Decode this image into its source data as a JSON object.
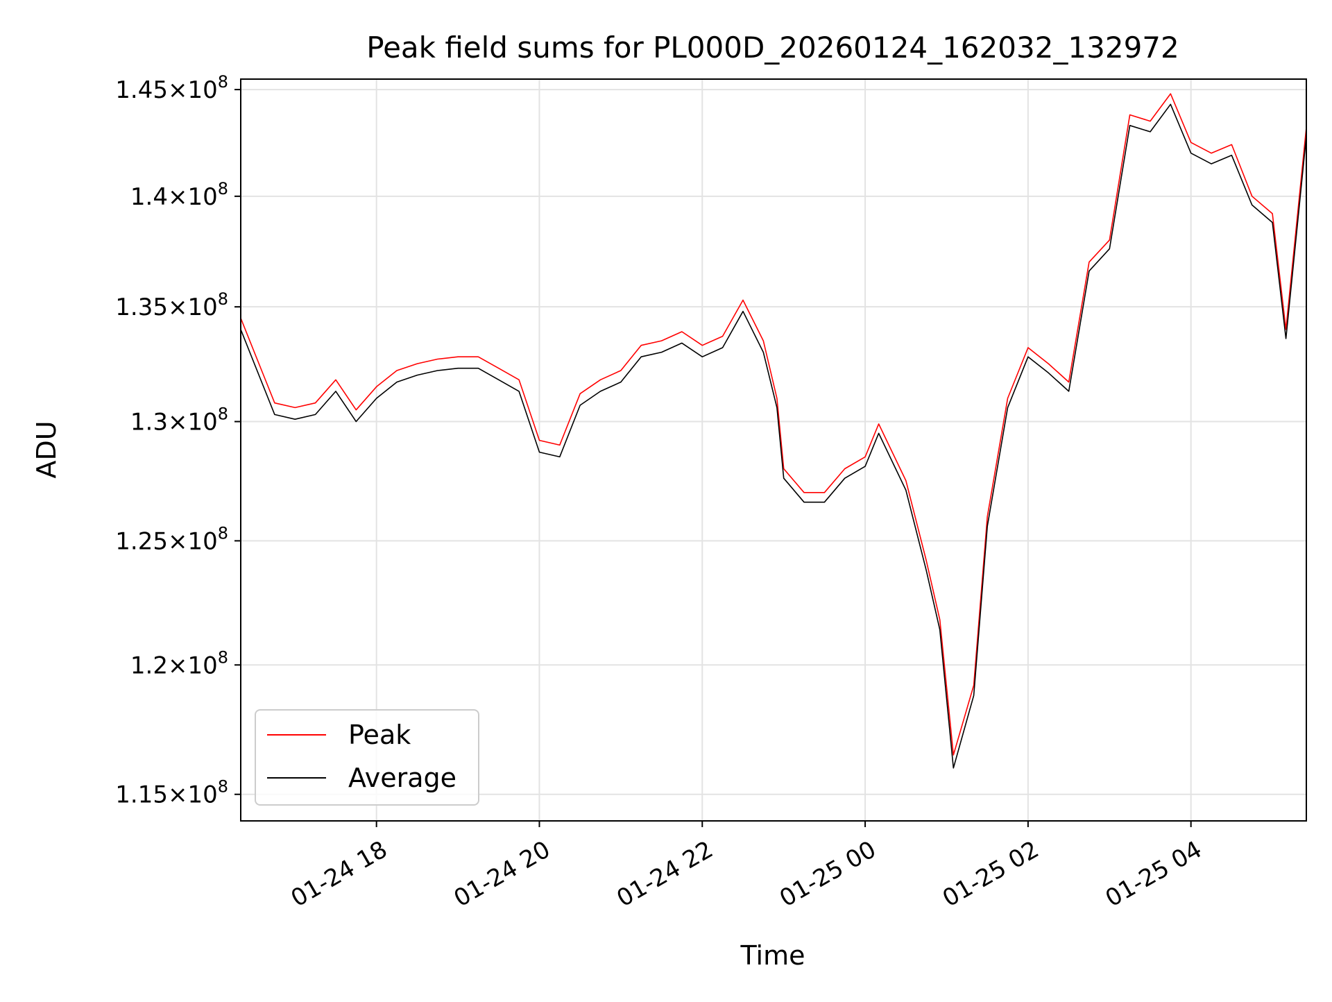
{
  "chart_data": {
    "type": "line",
    "title": "Peak field sums for PL000D_20260124_162032_132972",
    "xlabel": "Time",
    "ylabel": "ADU",
    "x_axis_kind": "datetime",
    "xlim": [
      "2026-01-24 16:20",
      "2026-01-25 05:25"
    ],
    "ylim": [
      114000000,
      145500000
    ],
    "y_scale": "log",
    "grid": true,
    "legend_position": "lower-left",
    "x_ticks": [
      {
        "value": "2026-01-24 18:00",
        "label": "01-24 18"
      },
      {
        "value": "2026-01-24 20:00",
        "label": "01-24 20"
      },
      {
        "value": "2026-01-24 22:00",
        "label": "01-24 22"
      },
      {
        "value": "2026-01-25 00:00",
        "label": "01-25 00"
      },
      {
        "value": "2026-01-25 02:00",
        "label": "01-25 02"
      },
      {
        "value": "2026-01-25 04:00",
        "label": "01-25 04"
      }
    ],
    "y_ticks": [
      {
        "value": 115000000,
        "mantissa": "1.15",
        "base": "10",
        "exp": "8"
      },
      {
        "value": 120000000,
        "mantissa": "1.2",
        "base": "10",
        "exp": "8"
      },
      {
        "value": 125000000,
        "mantissa": "1.25",
        "base": "10",
        "exp": "8"
      },
      {
        "value": 130000000,
        "mantissa": "1.3",
        "base": "10",
        "exp": "8"
      },
      {
        "value": 135000000,
        "mantissa": "1.35",
        "base": "10",
        "exp": "8"
      },
      {
        "value": 140000000,
        "mantissa": "1.4",
        "base": "10",
        "exp": "8"
      },
      {
        "value": 145000000,
        "mantissa": "1.45",
        "base": "10",
        "exp": "8"
      }
    ],
    "series": [
      {
        "name": "Peak",
        "color": "#ff0000",
        "x": [
          "2026-01-24 16:20",
          "2026-01-24 16:30",
          "2026-01-24 16:45",
          "2026-01-24 17:00",
          "2026-01-24 17:15",
          "2026-01-24 17:30",
          "2026-01-24 17:45",
          "2026-01-24 18:00",
          "2026-01-24 18:15",
          "2026-01-24 18:30",
          "2026-01-24 18:45",
          "2026-01-24 19:00",
          "2026-01-24 19:15",
          "2026-01-24 19:30",
          "2026-01-24 19:45",
          "2026-01-24 20:00",
          "2026-01-24 20:15",
          "2026-01-24 20:30",
          "2026-01-24 20:45",
          "2026-01-24 21:00",
          "2026-01-24 21:15",
          "2026-01-24 21:30",
          "2026-01-24 21:45",
          "2026-01-24 22:00",
          "2026-01-24 22:15",
          "2026-01-24 22:30",
          "2026-01-24 22:45",
          "2026-01-24 22:55",
          "2026-01-24 23:00",
          "2026-01-24 23:15",
          "2026-01-24 23:30",
          "2026-01-24 23:45",
          "2026-01-25 00:00",
          "2026-01-25 00:10",
          "2026-01-25 00:30",
          "2026-01-25 00:45",
          "2026-01-25 00:55",
          "2026-01-25 01:05",
          "2026-01-25 01:20",
          "2026-01-25 01:30",
          "2026-01-25 01:45",
          "2026-01-25 02:00",
          "2026-01-25 02:15",
          "2026-01-25 02:30",
          "2026-01-25 02:45",
          "2026-01-25 03:00",
          "2026-01-25 03:15",
          "2026-01-25 03:30",
          "2026-01-25 03:45",
          "2026-01-25 04:00",
          "2026-01-25 04:15",
          "2026-01-25 04:30",
          "2026-01-25 04:45",
          "2026-01-25 05:00",
          "2026-01-25 05:10",
          "2026-01-25 05:25"
        ],
        "values": [
          134500000,
          133000000,
          130800000,
          130600000,
          130800000,
          131800000,
          130500000,
          131500000,
          132200000,
          132500000,
          132700000,
          132800000,
          132800000,
          132300000,
          131800000,
          129200000,
          129000000,
          131200000,
          131800000,
          132200000,
          133300000,
          133500000,
          133900000,
          133300000,
          133700000,
          135300000,
          133500000,
          131000000,
          128000000,
          127000000,
          127000000,
          128000000,
          128500000,
          129900000,
          127500000,
          124200000,
          121800000,
          116500000,
          119200000,
          126000000,
          131000000,
          133200000,
          132500000,
          131700000,
          137000000,
          138000000,
          143800000,
          143500000,
          144800000,
          142500000,
          142000000,
          142400000,
          140000000,
          139200000,
          134000000,
          143200000
        ]
      },
      {
        "name": "Average",
        "color": "#000000",
        "x": [
          "2026-01-24 16:20",
          "2026-01-24 16:30",
          "2026-01-24 16:45",
          "2026-01-24 17:00",
          "2026-01-24 17:15",
          "2026-01-24 17:30",
          "2026-01-24 17:45",
          "2026-01-24 18:00",
          "2026-01-24 18:15",
          "2026-01-24 18:30",
          "2026-01-24 18:45",
          "2026-01-24 19:00",
          "2026-01-24 19:15",
          "2026-01-24 19:30",
          "2026-01-24 19:45",
          "2026-01-24 20:00",
          "2026-01-24 20:15",
          "2026-01-24 20:30",
          "2026-01-24 20:45",
          "2026-01-24 21:00",
          "2026-01-24 21:15",
          "2026-01-24 21:30",
          "2026-01-24 21:45",
          "2026-01-24 22:00",
          "2026-01-24 22:15",
          "2026-01-24 22:30",
          "2026-01-24 22:45",
          "2026-01-24 22:55",
          "2026-01-24 23:00",
          "2026-01-24 23:15",
          "2026-01-24 23:30",
          "2026-01-24 23:45",
          "2026-01-25 00:00",
          "2026-01-25 00:10",
          "2026-01-25 00:30",
          "2026-01-25 00:45",
          "2026-01-25 00:55",
          "2026-01-25 01:05",
          "2026-01-25 01:20",
          "2026-01-25 01:30",
          "2026-01-25 01:45",
          "2026-01-25 02:00",
          "2026-01-25 02:15",
          "2026-01-25 02:30",
          "2026-01-25 02:45",
          "2026-01-25 03:00",
          "2026-01-25 03:15",
          "2026-01-25 03:30",
          "2026-01-25 03:45",
          "2026-01-25 04:00",
          "2026-01-25 04:15",
          "2026-01-25 04:30",
          "2026-01-25 04:45",
          "2026-01-25 05:00",
          "2026-01-25 05:10",
          "2026-01-25 05:25"
        ],
        "values": [
          134000000,
          132500000,
          130300000,
          130100000,
          130300000,
          131300000,
          130000000,
          131000000,
          131700000,
          132000000,
          132200000,
          132300000,
          132300000,
          131800000,
          131300000,
          128700000,
          128500000,
          130700000,
          131300000,
          131700000,
          132800000,
          133000000,
          133400000,
          132800000,
          133200000,
          134800000,
          133000000,
          130600000,
          127600000,
          126600000,
          126600000,
          127600000,
          128100000,
          129500000,
          127100000,
          123800000,
          121400000,
          116000000,
          118800000,
          125600000,
          130600000,
          132800000,
          132100000,
          131300000,
          136600000,
          137600000,
          143300000,
          143000000,
          144300000,
          142000000,
          141500000,
          141900000,
          139600000,
          138800000,
          133600000,
          142800000
        ]
      }
    ]
  }
}
